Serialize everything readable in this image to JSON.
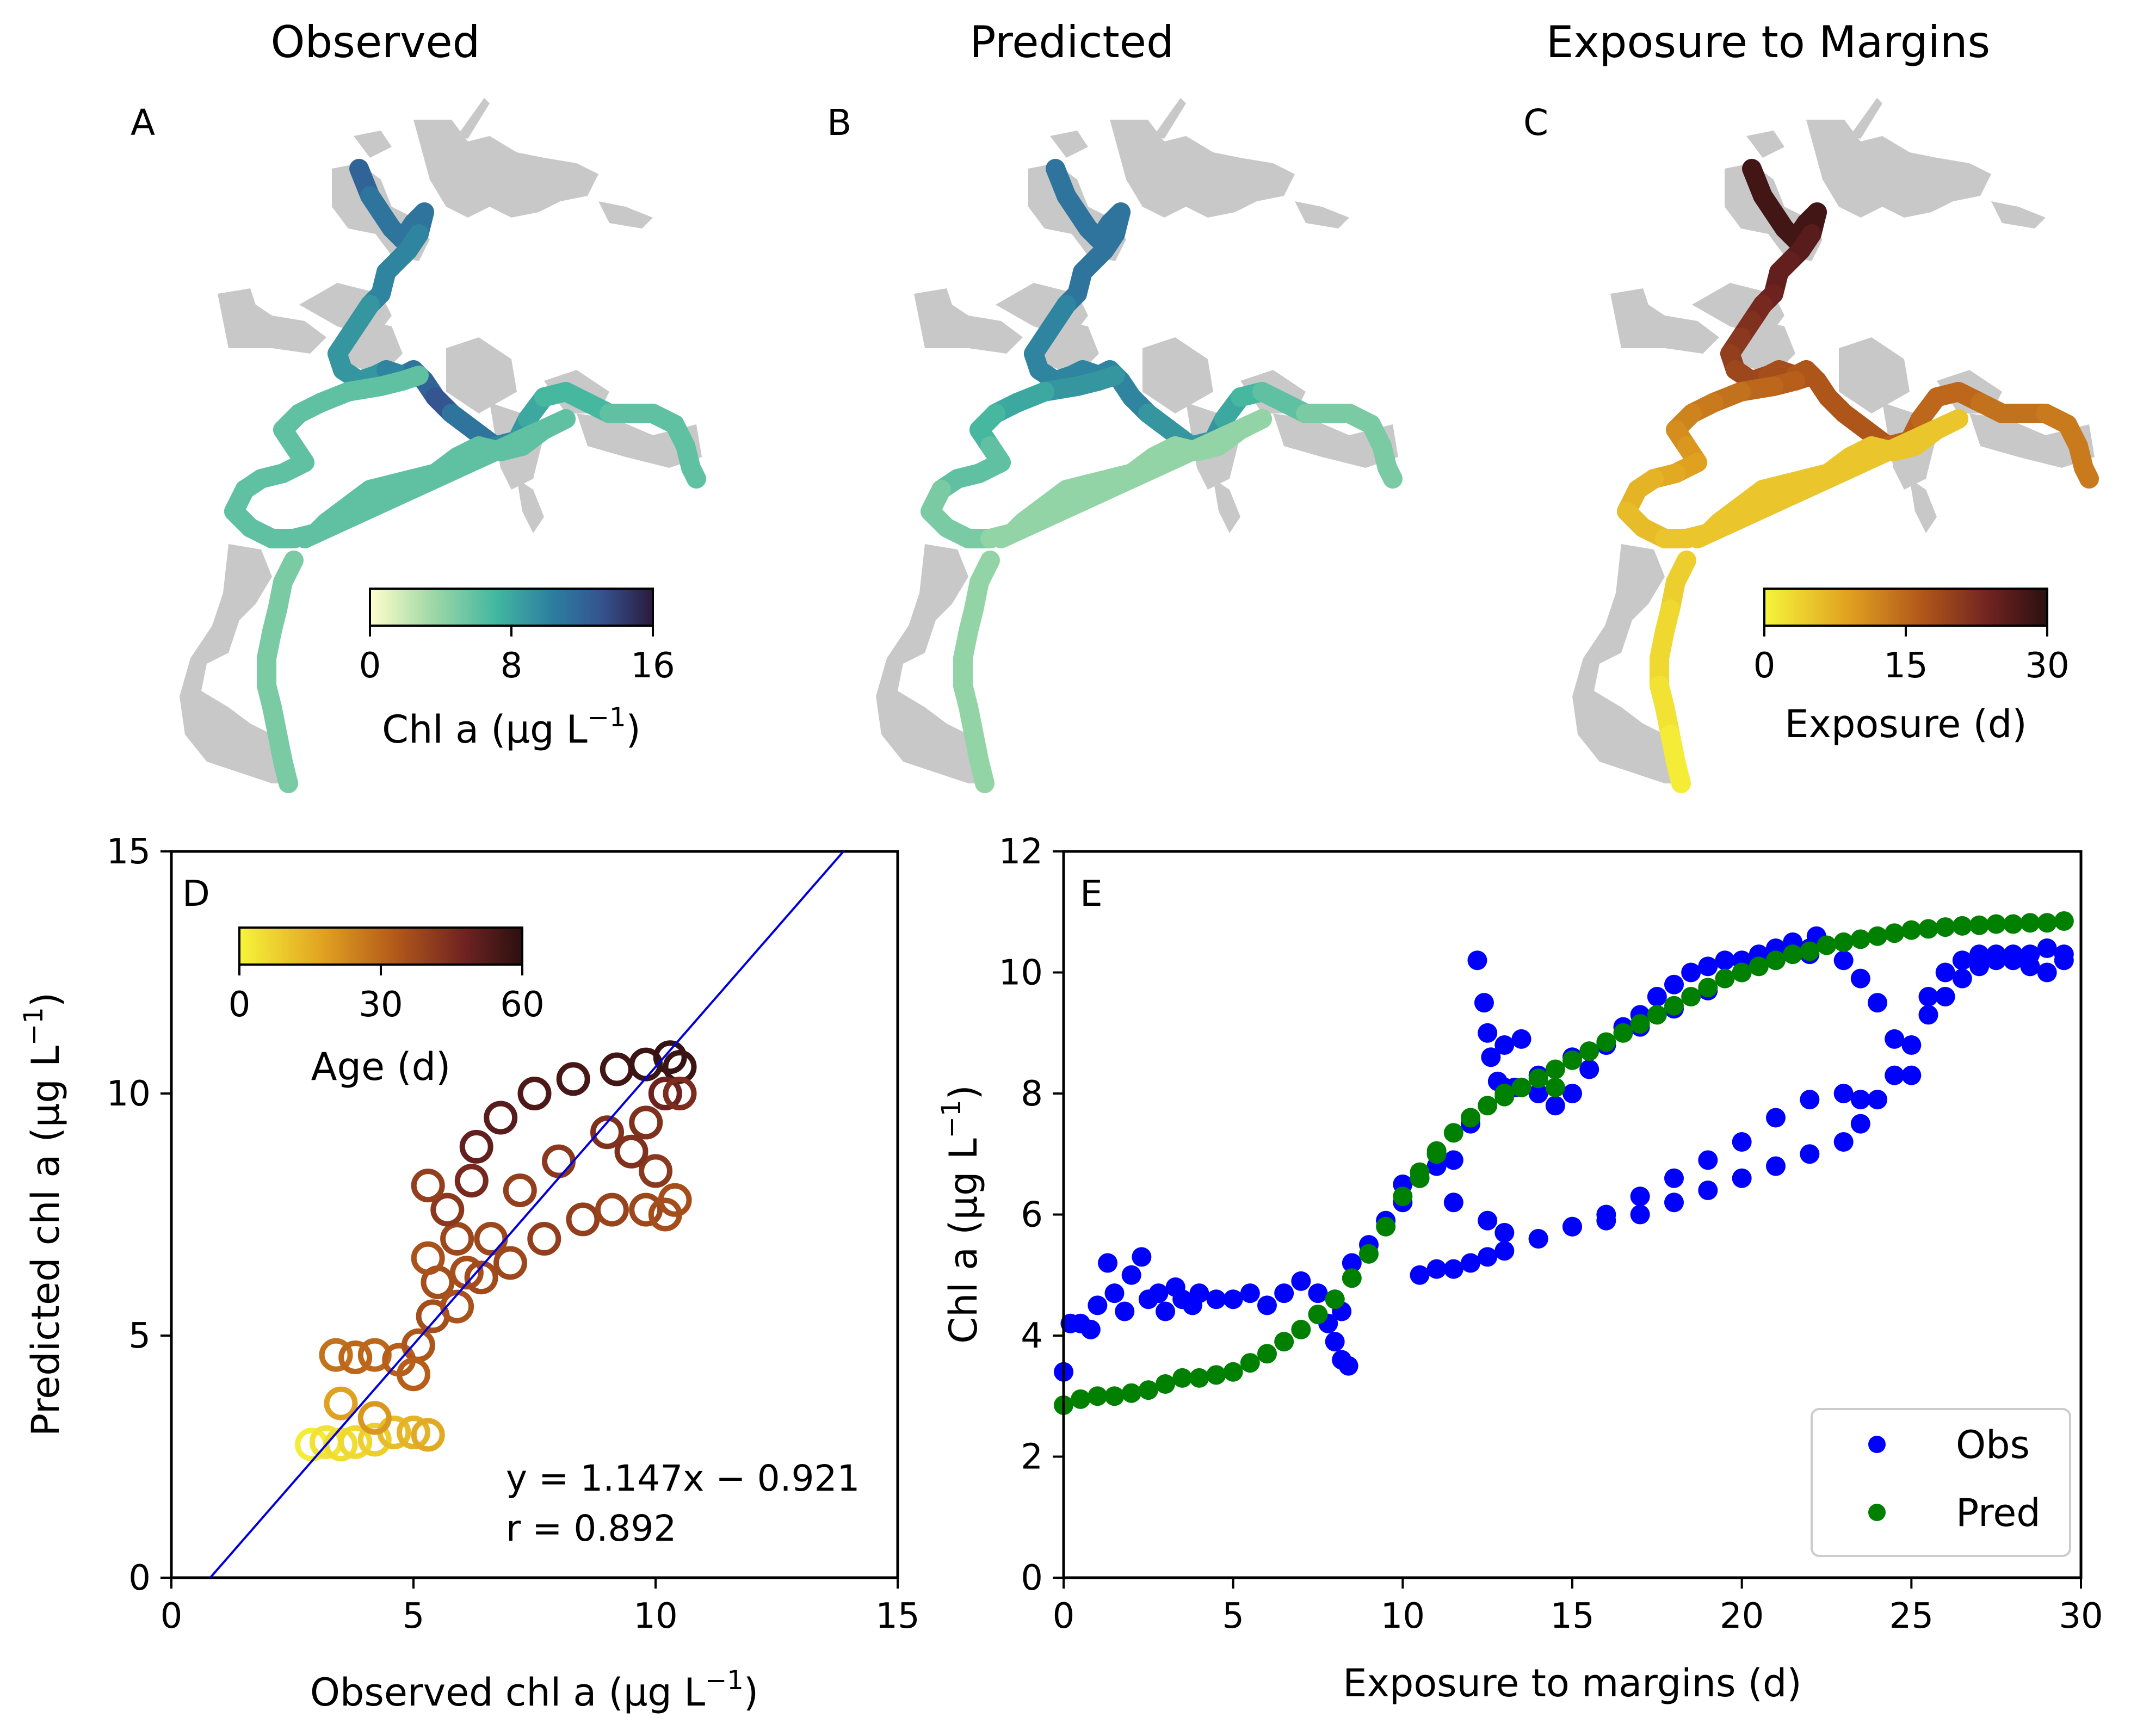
{
  "figure": {
    "panel_titles": [
      "Observed",
      "Predicted",
      "Exposure to Margins"
    ],
    "panel_letters": [
      "A",
      "B",
      "C",
      "D",
      "E"
    ]
  },
  "colorbars": {
    "chl": {
      "label_main": "Chl a (µg L",
      "label_exp": "−1",
      "label_close": ")",
      "ticks": [
        "0",
        "8",
        "16"
      ]
    },
    "exposure": {
      "label": "Exposure (d)",
      "ticks": [
        "0",
        "15",
        "30"
      ]
    },
    "age": {
      "label": "Age (d)",
      "ticks": [
        "0",
        "30",
        "60"
      ]
    }
  },
  "colors": {
    "map_land": "#c8c8c8",
    "one_to_one": "#0000dd",
    "obs": "#0000ff",
    "pred": "#008000"
  },
  "chart_data": [
    {
      "type": "scatter",
      "panel": "D",
      "xlabel_main": "Observed chl a (µg L",
      "xlabel_exp": "−1",
      "xlabel_close": ")",
      "ylabel_main": "Predicted chl a (µg L",
      "ylabel_exp": "−1",
      "ylabel_close": ")",
      "xlim": [
        0,
        15
      ],
      "ylim": [
        0,
        15
      ],
      "xticks": [
        0,
        5,
        10,
        15
      ],
      "yticks": [
        0,
        5,
        10,
        15
      ],
      "fit_line": {
        "slope": 1.147,
        "intercept": -0.921
      },
      "annotation_eq": "y = 1.147x − 0.921",
      "annotation_r": "r = 0.892",
      "color_by": "Age (d)",
      "points": [
        {
          "x": 2.9,
          "y": 2.75,
          "age": 2
        },
        {
          "x": 3.2,
          "y": 2.8,
          "age": 4
        },
        {
          "x": 3.5,
          "y": 2.75,
          "age": 5
        },
        {
          "x": 3.8,
          "y": 2.8,
          "age": 6
        },
        {
          "x": 4.2,
          "y": 2.85,
          "age": 8
        },
        {
          "x": 4.6,
          "y": 3.0,
          "age": 12
        },
        {
          "x": 5.0,
          "y": 3.0,
          "age": 14
        },
        {
          "x": 5.3,
          "y": 2.95,
          "age": 16
        },
        {
          "x": 3.5,
          "y": 3.6,
          "age": 18
        },
        {
          "x": 4.2,
          "y": 3.3,
          "age": 20
        },
        {
          "x": 3.4,
          "y": 4.6,
          "age": 28
        },
        {
          "x": 3.8,
          "y": 4.55,
          "age": 30
        },
        {
          "x": 4.2,
          "y": 4.6,
          "age": 30
        },
        {
          "x": 4.7,
          "y": 4.5,
          "age": 32
        },
        {
          "x": 5.1,
          "y": 4.8,
          "age": 34
        },
        {
          "x": 5.4,
          "y": 5.4,
          "age": 36
        },
        {
          "x": 5.5,
          "y": 6.1,
          "age": 36
        },
        {
          "x": 5.3,
          "y": 6.6,
          "age": 35
        },
        {
          "x": 5.9,
          "y": 7.0,
          "age": 38
        },
        {
          "x": 5.7,
          "y": 7.6,
          "age": 42
        },
        {
          "x": 6.2,
          "y": 8.2,
          "age": 46
        },
        {
          "x": 6.3,
          "y": 8.9,
          "age": 50
        },
        {
          "x": 6.8,
          "y": 9.5,
          "age": 52
        },
        {
          "x": 7.5,
          "y": 10.0,
          "age": 54
        },
        {
          "x": 8.3,
          "y": 10.3,
          "age": 55
        },
        {
          "x": 9.2,
          "y": 10.5,
          "age": 56
        },
        {
          "x": 9.8,
          "y": 10.6,
          "age": 57
        },
        {
          "x": 10.3,
          "y": 10.75,
          "age": 58
        },
        {
          "x": 10.5,
          "y": 10.55,
          "age": 57
        },
        {
          "x": 10.2,
          "y": 10.0,
          "age": 48
        },
        {
          "x": 9.8,
          "y": 9.4,
          "age": 44
        },
        {
          "x": 9.0,
          "y": 9.2,
          "age": 44
        },
        {
          "x": 8.0,
          "y": 8.6,
          "age": 42
        },
        {
          "x": 7.2,
          "y": 8.0,
          "age": 40
        },
        {
          "x": 6.6,
          "y": 7.0,
          "age": 38
        },
        {
          "x": 6.1,
          "y": 6.3,
          "age": 36
        },
        {
          "x": 5.9,
          "y": 5.6,
          "age": 35
        },
        {
          "x": 6.4,
          "y": 6.2,
          "age": 37
        },
        {
          "x": 7.0,
          "y": 6.5,
          "age": 38
        },
        {
          "x": 7.7,
          "y": 7.0,
          "age": 40
        },
        {
          "x": 8.5,
          "y": 7.4,
          "age": 40
        },
        {
          "x": 9.1,
          "y": 7.6,
          "age": 39
        },
        {
          "x": 9.8,
          "y": 7.6,
          "age": 38
        },
        {
          "x": 10.2,
          "y": 7.5,
          "age": 36
        },
        {
          "x": 10.4,
          "y": 7.8,
          "age": 36
        },
        {
          "x": 10.0,
          "y": 8.4,
          "age": 42
        },
        {
          "x": 9.5,
          "y": 8.8,
          "age": 44
        },
        {
          "x": 5.3,
          "y": 8.1,
          "age": 40
        },
        {
          "x": 10.5,
          "y": 10.0,
          "age": 45
        },
        {
          "x": 5.0,
          "y": 4.2,
          "age": 32
        }
      ]
    },
    {
      "type": "scatter",
      "panel": "E",
      "xlabel": "Exposure to margins (d)",
      "ylabel_main": "Chl a (µg L",
      "ylabel_exp": "−1",
      "ylabel_close": ")",
      "xlim": [
        0,
        30
      ],
      "ylim": [
        0,
        12
      ],
      "xticks": [
        0,
        5,
        10,
        15,
        20,
        25,
        30
      ],
      "yticks": [
        0,
        2,
        4,
        6,
        8,
        10,
        12
      ],
      "legend_position": "lower-right",
      "series": [
        {
          "name": "Obs",
          "x": [
            0,
            0.2,
            0.5,
            0.8,
            1.0,
            1.3,
            1.5,
            1.8,
            2.0,
            2.3,
            2.5,
            2.8,
            3.0,
            3.3,
            3.5,
            3.8,
            4.0,
            4.5,
            5.0,
            5.5,
            6.0,
            6.5,
            7.0,
            7.5,
            8.0,
            8.2,
            8.5,
            9.0,
            9.5,
            10.0,
            10.5,
            11.0,
            11.5,
            12.0,
            12.2,
            12.4,
            12.6,
            12.8,
            13.0,
            13.5,
            14.0,
            14.5,
            15.0,
            15.5,
            16.0,
            16.5,
            17.0,
            17.5,
            18.0,
            18.5,
            19.0,
            19.5,
            20.0,
            20.5,
            21.0,
            21.5,
            22.0,
            22.2,
            12.5,
            13.0,
            14.0,
            15.0,
            16.0,
            17.0,
            18.0,
            19.0,
            20.0,
            21.0,
            22.0,
            23.0,
            23.5,
            24.0,
            24.5,
            25.0,
            25.5,
            26.0,
            26.5,
            27.0,
            27.5,
            28.0,
            28.5,
            29.0,
            29.5,
            10.5,
            11.0,
            11.5,
            12.0,
            12.5,
            13.0,
            14.0,
            15.0,
            16.0,
            17.0,
            18.0,
            19.0,
            20.0,
            21.0,
            22.0,
            23.0,
            23.5,
            24.0,
            10.0,
            11.0,
            12.0,
            13.0,
            14.0,
            15.0,
            16.0,
            17.0,
            18.0,
            19.0,
            20.0,
            21.0,
            22.0,
            23.0,
            23.5,
            24.0,
            24.5,
            25.0,
            25.5,
            26.0,
            26.5,
            27.0,
            27.5,
            28.0,
            28.5,
            29.0,
            29.5,
            8.2,
            8.4,
            8.0,
            7.8,
            11.5,
            12.5,
            13.3
          ],
          "y": [
            3.4,
            4.2,
            4.2,
            4.1,
            4.5,
            5.2,
            4.7,
            4.4,
            5.0,
            5.3,
            4.6,
            4.7,
            4.4,
            4.8,
            4.6,
            4.5,
            4.7,
            4.6,
            4.6,
            4.7,
            4.5,
            4.7,
            4.9,
            4.7,
            4.6,
            4.4,
            5.2,
            5.5,
            5.9,
            6.2,
            6.6,
            6.8,
            6.9,
            7.5,
            10.2,
            9.5,
            8.6,
            8.2,
            8.8,
            8.9,
            8.0,
            7.8,
            8.0,
            8.4,
            8.8,
            9.1,
            9.3,
            9.6,
            9.8,
            10.0,
            10.1,
            10.2,
            10.2,
            10.3,
            10.4,
            10.5,
            10.4,
            10.6,
            5.9,
            5.7,
            5.6,
            5.8,
            5.9,
            6.0,
            6.2,
            6.4,
            6.6,
            6.8,
            7.0,
            7.2,
            7.5,
            7.9,
            8.3,
            8.8,
            9.3,
            9.6,
            9.9,
            10.1,
            10.2,
            10.3,
            10.3,
            10.4,
            10.3,
            5.0,
            5.1,
            5.1,
            5.2,
            5.3,
            5.4,
            5.6,
            5.8,
            6.0,
            6.3,
            6.6,
            6.9,
            7.2,
            7.6,
            7.9,
            8.0,
            7.9,
            7.9,
            6.5,
            7.0,
            7.6,
            8.1,
            8.3,
            8.6,
            8.8,
            9.1,
            9.4,
            9.7,
            10.0,
            10.3,
            10.3,
            10.2,
            9.9,
            9.5,
            8.9,
            8.3,
            9.6,
            10.0,
            10.2,
            10.3,
            10.3,
            10.2,
            10.1,
            10.0,
            10.2,
            3.6,
            3.5,
            3.9,
            4.2,
            6.2,
            9.0,
            8.1
          ]
        },
        {
          "name": "Pred",
          "x": [
            0,
            0.5,
            1.0,
            1.5,
            2.0,
            2.5,
            3.0,
            3.5,
            4.0,
            4.5,
            5.0,
            5.5,
            6.0,
            6.5,
            7.0,
            7.5,
            8.0,
            8.5,
            9.0,
            9.5,
            10.0,
            10.5,
            11.0,
            11.5,
            12.0,
            12.5,
            13.0,
            13.5,
            14.0,
            14.5,
            15.0,
            15.5,
            16.0,
            16.5,
            17.0,
            17.5,
            18.0,
            18.5,
            19.0,
            19.5,
            20.0,
            20.5,
            21.0,
            21.5,
            22.0,
            22.5,
            23.0,
            23.5,
            24.0,
            24.5,
            25.0,
            25.5,
            26.0,
            26.5,
            27.0,
            27.5,
            28.0,
            28.5,
            29.0,
            29.5,
            10.5,
            11.0,
            12.0,
            13.0,
            13.5,
            14.5
          ],
          "y": [
            2.85,
            2.95,
            3.0,
            3.0,
            3.05,
            3.1,
            3.2,
            3.3,
            3.3,
            3.35,
            3.4,
            3.55,
            3.7,
            3.9,
            4.1,
            4.35,
            4.6,
            4.95,
            5.35,
            5.8,
            6.3,
            6.7,
            7.05,
            7.35,
            7.6,
            7.8,
            7.95,
            8.1,
            8.25,
            8.4,
            8.55,
            8.7,
            8.85,
            9.0,
            9.15,
            9.3,
            9.45,
            9.6,
            9.75,
            9.9,
            10.0,
            10.1,
            10.2,
            10.3,
            10.35,
            10.45,
            10.5,
            10.55,
            10.6,
            10.65,
            10.7,
            10.72,
            10.75,
            10.77,
            10.78,
            10.8,
            10.8,
            10.82,
            10.82,
            10.85,
            6.6,
            7.0,
            7.6,
            8.0,
            8.1,
            8.1
          ]
        }
      ]
    }
  ]
}
